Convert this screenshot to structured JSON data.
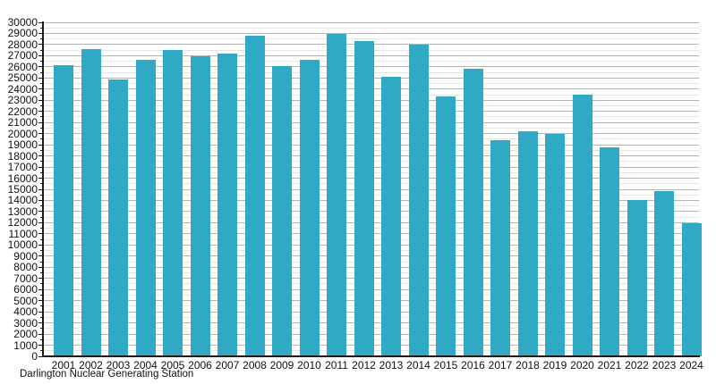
{
  "chart_data": {
    "type": "bar",
    "title": "Darlington Nuclear Generating Station",
    "xlabel": "",
    "ylabel": "",
    "categories": [
      "2001",
      "2002",
      "2003",
      "2004",
      "2005",
      "2006",
      "2007",
      "2008",
      "2009",
      "2010",
      "2011",
      "2012",
      "2013",
      "2014",
      "2015",
      "2016",
      "2017",
      "2018",
      "2019",
      "2020",
      "2021",
      "2022",
      "2023",
      "2024"
    ],
    "values": [
      26150,
      27600,
      24900,
      26600,
      27550,
      26950,
      27200,
      28800,
      26100,
      26600,
      28950,
      28300,
      25100,
      28000,
      23350,
      25800,
      19400,
      20200,
      19950,
      23500,
      18750,
      14050,
      14800,
      11950
    ],
    "ylim": [
      0,
      30000
    ],
    "y_major_step": 1000,
    "y_minor_step": 500,
    "grid": "horizontal",
    "legend_position": "none",
    "bar_color": "#2fa9c4",
    "major_grid_color": "#b4b4b4",
    "minor_grid_color": "#e5e5e5",
    "axis_color": "#1a1a1a",
    "text_color": "#111111"
  }
}
